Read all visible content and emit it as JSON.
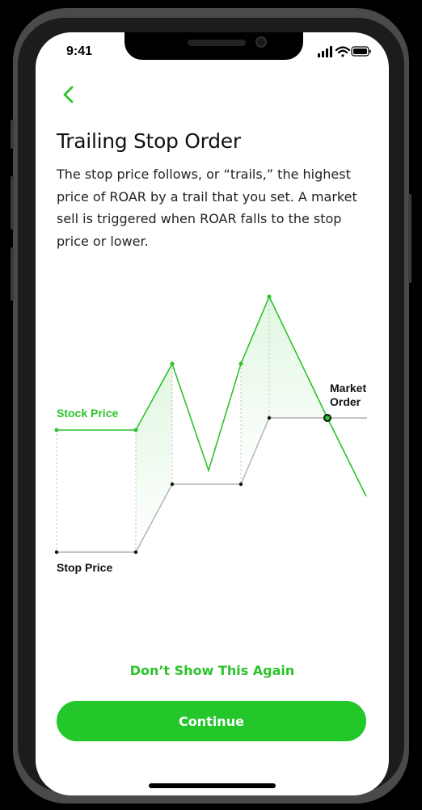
{
  "status_bar": {
    "time": "9:41",
    "icons": [
      "cellular-signal-icon",
      "wifi-icon",
      "battery-icon"
    ]
  },
  "header": {
    "back_icon": "chevron-left-icon"
  },
  "content": {
    "title": "Trailing Stop Order",
    "description": "The stop price follows, or “trails,” the highest price of ROAR by a trail that you set. A market sell is triggered when ROAR falls to the stop price or lower."
  },
  "chart_data": {
    "type": "line",
    "series": [
      {
        "name": "Stock Price",
        "color": "#2cc32c",
        "values": []
      },
      {
        "name": "Stop Price",
        "color": "#b0b0b0",
        "values": []
      }
    ],
    "annotations": [
      "Market Order"
    ],
    "legend_placement": "inline-labels"
  },
  "actions": {
    "dont_show_label": "Don’t Show This Again",
    "continue_label": "Continue"
  },
  "colors": {
    "accent": "#23c72a",
    "stop_line": "#b0b0b0",
    "text": "#111111"
  }
}
